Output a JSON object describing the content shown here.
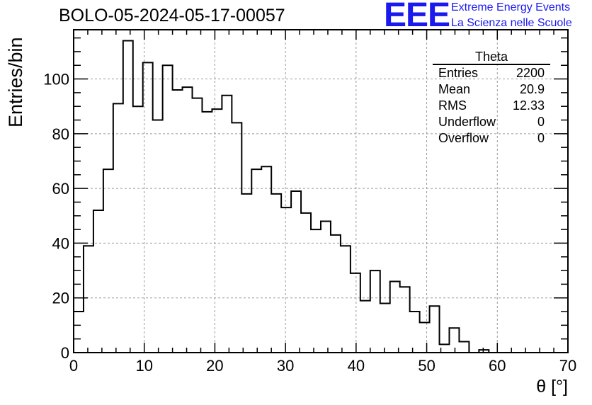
{
  "header": {
    "title": "BOLO-05-2024-05-17-00057"
  },
  "logo": {
    "mark": "EEE",
    "line1": "Extreme Energy Events",
    "line2": "La Scienza nelle Scuole",
    "color": "#1a1aee"
  },
  "stats_box": {
    "title": "Theta",
    "rows": [
      {
        "label": "Entries",
        "value": "2200"
      },
      {
        "label": "Mean",
        "value": "20.9"
      },
      {
        "label": "RMS",
        "value": "12.33"
      },
      {
        "label": "Underflow",
        "value": "0"
      },
      {
        "label": "Overflow",
        "value": "0"
      }
    ]
  },
  "chart_data": {
    "type": "bar",
    "title": "BOLO-05-2024-05-17-00057",
    "xlabel": "θ [°]",
    "ylabel": "Entries/bin",
    "xlim": [
      0,
      70
    ],
    "ylim": [
      0,
      118
    ],
    "xticks": [
      0,
      10,
      20,
      30,
      40,
      50,
      60,
      70
    ],
    "yticks": [
      0,
      20,
      40,
      60,
      80,
      100
    ],
    "bin_width": 1.4,
    "grid": true,
    "values": [
      15,
      39,
      52,
      67,
      91,
      114,
      90,
      106,
      85,
      105,
      96,
      97,
      93,
      88,
      89,
      94,
      84,
      58,
      67,
      68,
      58,
      53,
      59,
      51,
      45,
      48,
      43,
      39,
      29,
      19,
      30,
      18,
      26,
      24,
      15,
      11,
      17,
      3,
      9,
      4,
      0,
      1,
      0,
      0,
      0,
      0,
      0,
      0,
      0,
      0
    ],
    "color": "#000000"
  }
}
